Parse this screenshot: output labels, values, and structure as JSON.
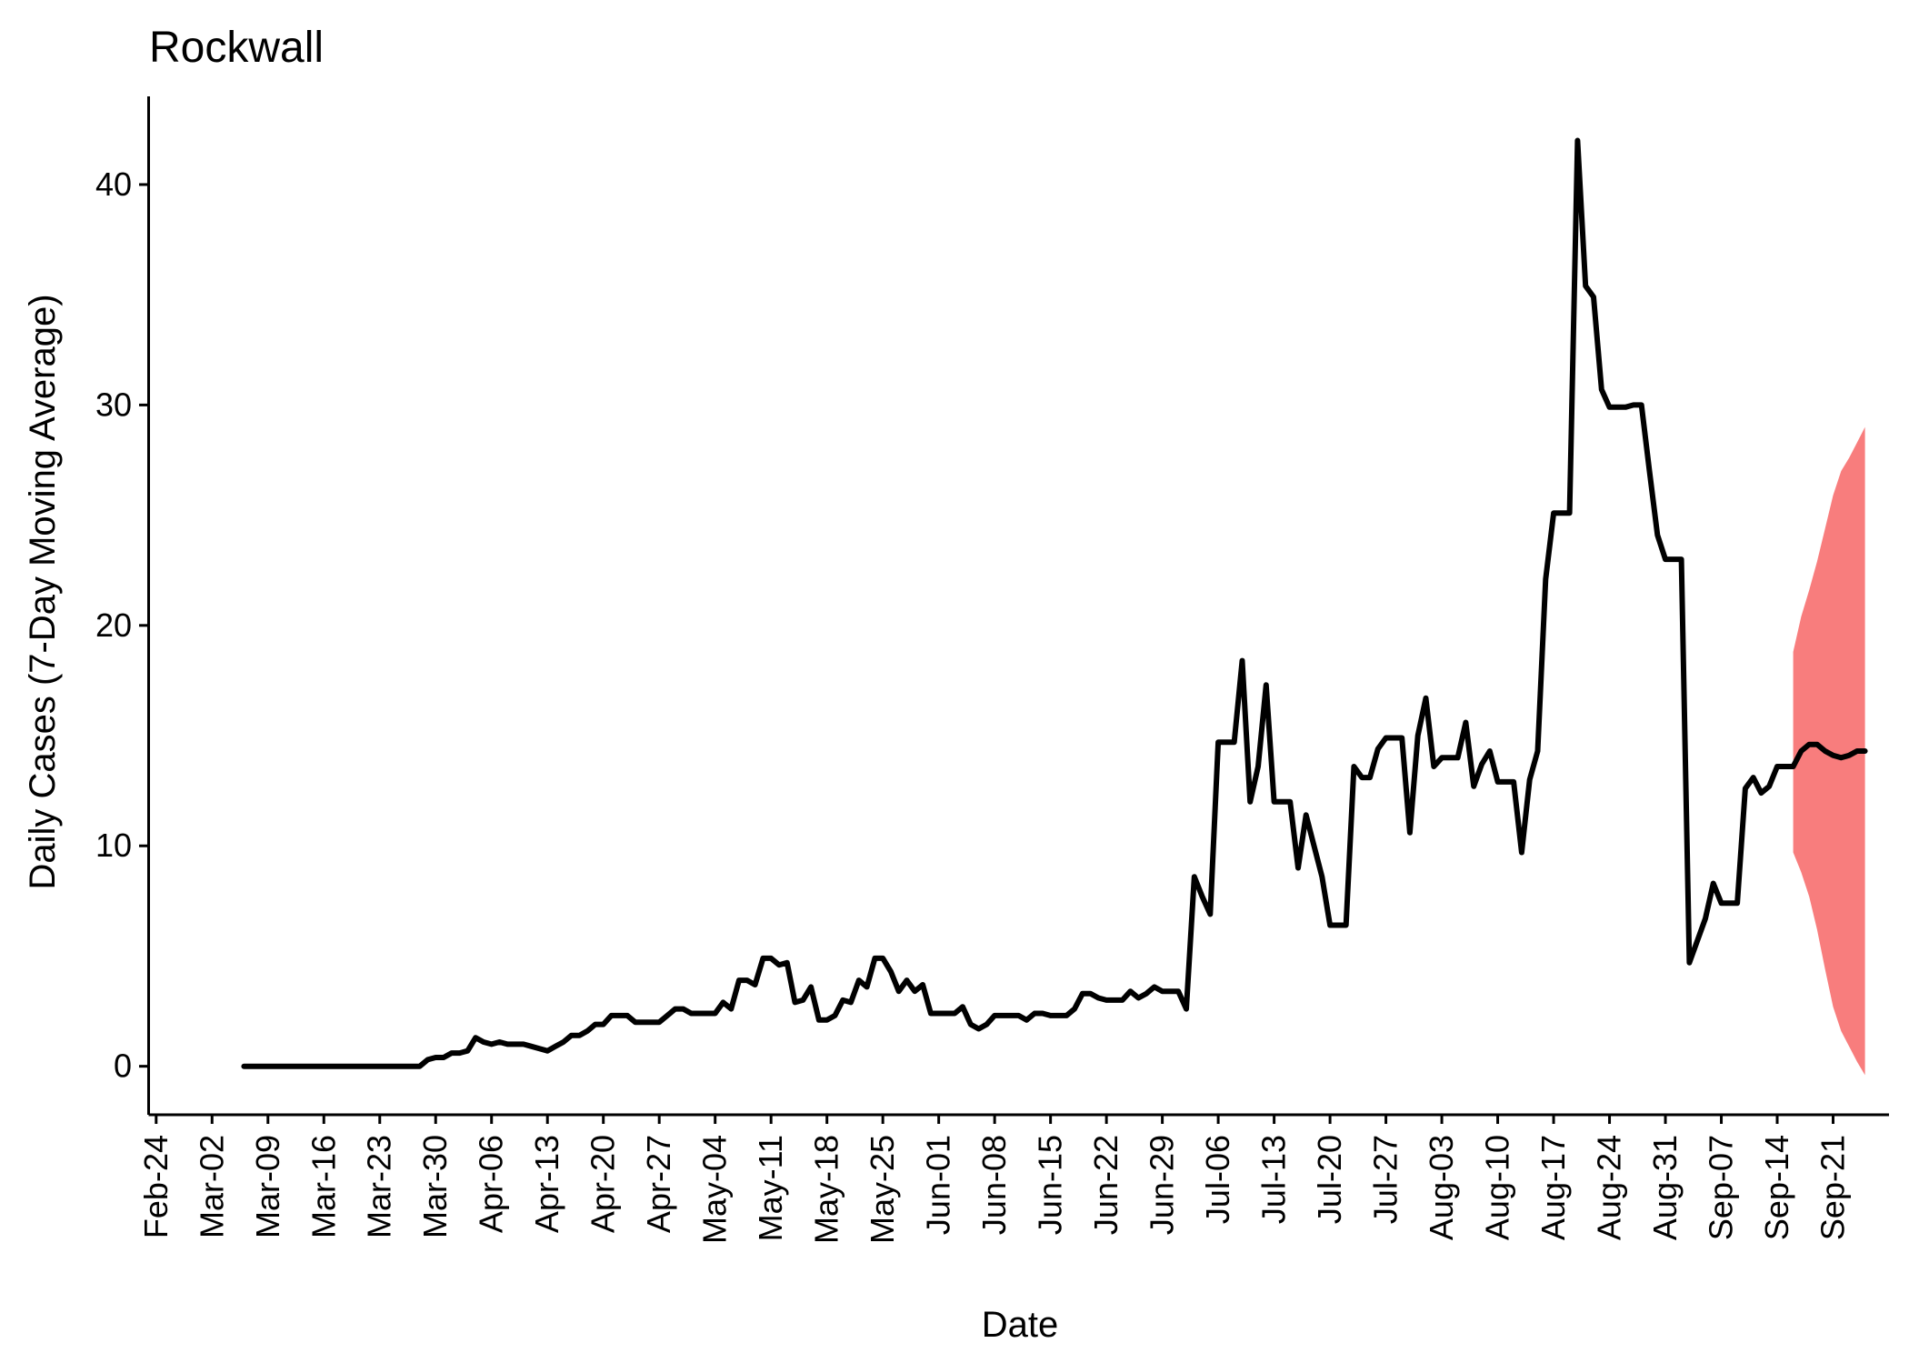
{
  "chart_data": {
    "type": "line",
    "title": "Rockwall",
    "xlabel": "Date",
    "ylabel": "Daily Cases (7-Day Moving Average)",
    "x_ticks": [
      "Feb-24",
      "Mar-02",
      "Mar-09",
      "Mar-16",
      "Mar-23",
      "Mar-30",
      "Apr-06",
      "Apr-13",
      "Apr-20",
      "Apr-27",
      "May-04",
      "May-11",
      "May-18",
      "May-25",
      "Jun-01",
      "Jun-08",
      "Jun-15",
      "Jun-22",
      "Jun-29",
      "Jul-06",
      "Jul-13",
      "Jul-20",
      "Jul-27",
      "Aug-03",
      "Aug-10",
      "Aug-17",
      "Aug-24",
      "Aug-31",
      "Sep-07",
      "Sep-14",
      "Sep-21"
    ],
    "y_ticks": [
      0,
      10,
      20,
      30,
      40
    ],
    "ylim": [
      -2.2,
      44
    ],
    "xlim": [
      "2020-02-23",
      "2020-09-28"
    ],
    "grid": false,
    "colors": {
      "line": "#000000",
      "band": "#f87d7d"
    },
    "series": [
      {
        "values": [
          [
            "2020-03-06",
            0
          ],
          [
            "2020-03-13",
            0
          ],
          [
            "2020-03-20",
            0
          ],
          [
            "2020-03-27",
            0
          ],
          [
            "2020-03-28",
            0
          ],
          [
            "2020-03-29",
            0.3
          ],
          [
            "2020-03-30",
            0.4
          ],
          [
            "2020-03-31",
            0.4
          ],
          [
            "2020-04-01",
            0.6
          ],
          [
            "2020-04-02",
            0.6
          ],
          [
            "2020-04-03",
            0.7
          ],
          [
            "2020-04-04",
            1.3
          ],
          [
            "2020-04-05",
            1.1
          ],
          [
            "2020-04-06",
            1.0
          ],
          [
            "2020-04-07",
            1.1
          ],
          [
            "2020-04-08",
            1.0
          ],
          [
            "2020-04-09",
            1.0
          ],
          [
            "2020-04-10",
            1.0
          ],
          [
            "2020-04-11",
            0.9
          ],
          [
            "2020-04-12",
            0.8
          ],
          [
            "2020-04-13",
            0.7
          ],
          [
            "2020-04-14",
            0.9
          ],
          [
            "2020-04-15",
            1.1
          ],
          [
            "2020-04-16",
            1.4
          ],
          [
            "2020-04-17",
            1.4
          ],
          [
            "2020-04-18",
            1.6
          ],
          [
            "2020-04-19",
            1.9
          ],
          [
            "2020-04-20",
            1.9
          ],
          [
            "2020-04-21",
            2.3
          ],
          [
            "2020-04-22",
            2.3
          ],
          [
            "2020-04-23",
            2.3
          ],
          [
            "2020-04-24",
            2.0
          ],
          [
            "2020-04-25",
            2.0
          ],
          [
            "2020-04-26",
            2.0
          ],
          [
            "2020-04-27",
            2.0
          ],
          [
            "2020-04-28",
            2.3
          ],
          [
            "2020-04-29",
            2.6
          ],
          [
            "2020-04-30",
            2.6
          ],
          [
            "2020-05-01",
            2.4
          ],
          [
            "2020-05-02",
            2.4
          ],
          [
            "2020-05-03",
            2.4
          ],
          [
            "2020-05-04",
            2.4
          ],
          [
            "2020-05-05",
            2.9
          ],
          [
            "2020-05-06",
            2.6
          ],
          [
            "2020-05-07",
            3.9
          ],
          [
            "2020-05-08",
            3.9
          ],
          [
            "2020-05-09",
            3.7
          ],
          [
            "2020-05-10",
            4.9
          ],
          [
            "2020-05-11",
            4.9
          ],
          [
            "2020-05-12",
            4.6
          ],
          [
            "2020-05-13",
            4.7
          ],
          [
            "2020-05-14",
            2.9
          ],
          [
            "2020-05-15",
            3.0
          ],
          [
            "2020-05-16",
            3.6
          ],
          [
            "2020-05-17",
            2.1
          ],
          [
            "2020-05-18",
            2.1
          ],
          [
            "2020-05-19",
            2.3
          ],
          [
            "2020-05-20",
            3.0
          ],
          [
            "2020-05-21",
            2.9
          ],
          [
            "2020-05-22",
            3.9
          ],
          [
            "2020-05-23",
            3.6
          ],
          [
            "2020-05-24",
            4.9
          ],
          [
            "2020-05-25",
            4.9
          ],
          [
            "2020-05-26",
            4.3
          ],
          [
            "2020-05-27",
            3.4
          ],
          [
            "2020-05-28",
            3.9
          ],
          [
            "2020-05-29",
            3.4
          ],
          [
            "2020-05-30",
            3.7
          ],
          [
            "2020-05-31",
            2.4
          ],
          [
            "2020-06-01",
            2.4
          ],
          [
            "2020-06-02",
            2.4
          ],
          [
            "2020-06-03",
            2.4
          ],
          [
            "2020-06-04",
            2.7
          ],
          [
            "2020-06-05",
            1.9
          ],
          [
            "2020-06-06",
            1.7
          ],
          [
            "2020-06-07",
            1.9
          ],
          [
            "2020-06-08",
            2.3
          ],
          [
            "2020-06-09",
            2.3
          ],
          [
            "2020-06-10",
            2.3
          ],
          [
            "2020-06-11",
            2.3
          ],
          [
            "2020-06-12",
            2.1
          ],
          [
            "2020-06-13",
            2.4
          ],
          [
            "2020-06-14",
            2.4
          ],
          [
            "2020-06-15",
            2.3
          ],
          [
            "2020-06-16",
            2.3
          ],
          [
            "2020-06-17",
            2.3
          ],
          [
            "2020-06-18",
            2.6
          ],
          [
            "2020-06-19",
            3.3
          ],
          [
            "2020-06-20",
            3.3
          ],
          [
            "2020-06-21",
            3.1
          ],
          [
            "2020-06-22",
            3.0
          ],
          [
            "2020-06-23",
            3.0
          ],
          [
            "2020-06-24",
            3.0
          ],
          [
            "2020-06-25",
            3.4
          ],
          [
            "2020-06-26",
            3.1
          ],
          [
            "2020-06-27",
            3.3
          ],
          [
            "2020-06-28",
            3.6
          ],
          [
            "2020-06-29",
            3.4
          ],
          [
            "2020-06-30",
            3.4
          ],
          [
            "2020-07-01",
            3.4
          ],
          [
            "2020-07-02",
            2.6
          ],
          [
            "2020-07-03",
            8.6
          ],
          [
            "2020-07-04",
            7.7
          ],
          [
            "2020-07-05",
            6.9
          ],
          [
            "2020-07-06",
            14.7
          ],
          [
            "2020-07-07",
            14.7
          ],
          [
            "2020-07-08",
            14.7
          ],
          [
            "2020-07-09",
            18.4
          ],
          [
            "2020-07-10",
            12.0
          ],
          [
            "2020-07-11",
            13.6
          ],
          [
            "2020-07-12",
            17.3
          ],
          [
            "2020-07-13",
            12.0
          ],
          [
            "2020-07-14",
            12.0
          ],
          [
            "2020-07-15",
            12.0
          ],
          [
            "2020-07-16",
            9.0
          ],
          [
            "2020-07-17",
            11.4
          ],
          [
            "2020-07-18",
            10.0
          ],
          [
            "2020-07-19",
            8.6
          ],
          [
            "2020-07-20",
            6.4
          ],
          [
            "2020-07-21",
            6.4
          ],
          [
            "2020-07-22",
            6.4
          ],
          [
            "2020-07-23",
            13.6
          ],
          [
            "2020-07-24",
            13.1
          ],
          [
            "2020-07-25",
            13.1
          ],
          [
            "2020-07-26",
            14.4
          ],
          [
            "2020-07-27",
            14.9
          ],
          [
            "2020-07-28",
            14.9
          ],
          [
            "2020-07-29",
            14.9
          ],
          [
            "2020-07-30",
            10.6
          ],
          [
            "2020-07-31",
            15.0
          ],
          [
            "2020-08-01",
            16.7
          ],
          [
            "2020-08-02",
            13.6
          ],
          [
            "2020-08-03",
            14.0
          ],
          [
            "2020-08-04",
            14.0
          ],
          [
            "2020-08-05",
            14.0
          ],
          [
            "2020-08-06",
            15.6
          ],
          [
            "2020-08-07",
            12.7
          ],
          [
            "2020-08-08",
            13.7
          ],
          [
            "2020-08-09",
            14.3
          ],
          [
            "2020-08-10",
            12.9
          ],
          [
            "2020-08-11",
            12.9
          ],
          [
            "2020-08-12",
            12.9
          ],
          [
            "2020-08-13",
            9.7
          ],
          [
            "2020-08-14",
            13.0
          ],
          [
            "2020-08-15",
            14.3
          ],
          [
            "2020-08-16",
            22.1
          ],
          [
            "2020-08-17",
            25.1
          ],
          [
            "2020-08-18",
            25.1
          ],
          [
            "2020-08-19",
            25.1
          ],
          [
            "2020-08-20",
            42.0
          ],
          [
            "2020-08-21",
            35.4
          ],
          [
            "2020-08-22",
            34.9
          ],
          [
            "2020-08-23",
            30.7
          ],
          [
            "2020-08-24",
            29.9
          ],
          [
            "2020-08-25",
            29.9
          ],
          [
            "2020-08-26",
            29.9
          ],
          [
            "2020-08-27",
            30.0
          ],
          [
            "2020-08-28",
            30.0
          ],
          [
            "2020-08-29",
            27.0
          ],
          [
            "2020-08-30",
            24.1
          ],
          [
            "2020-08-31",
            23.0
          ],
          [
            "2020-09-01",
            23.0
          ],
          [
            "2020-09-02",
            23.0
          ],
          [
            "2020-09-03",
            4.7
          ],
          [
            "2020-09-04",
            5.7
          ],
          [
            "2020-09-05",
            6.7
          ],
          [
            "2020-09-06",
            8.3
          ],
          [
            "2020-09-07",
            7.4
          ],
          [
            "2020-09-08",
            7.4
          ],
          [
            "2020-09-09",
            7.4
          ],
          [
            "2020-09-10",
            12.6
          ],
          [
            "2020-09-11",
            13.1
          ],
          [
            "2020-09-12",
            12.4
          ],
          [
            "2020-09-13",
            12.7
          ],
          [
            "2020-09-14",
            13.6
          ],
          [
            "2020-09-15",
            13.6
          ],
          [
            "2020-09-16",
            13.6
          ],
          [
            "2020-09-17",
            14.3
          ],
          [
            "2020-09-18",
            14.6
          ],
          [
            "2020-09-19",
            14.6
          ],
          [
            "2020-09-20",
            14.3
          ],
          [
            "2020-09-21",
            14.1
          ],
          [
            "2020-09-22",
            14.0
          ],
          [
            "2020-09-23",
            14.1
          ],
          [
            "2020-09-24",
            14.3
          ],
          [
            "2020-09-25",
            14.3
          ]
        ]
      }
    ],
    "band": {
      "x": [
        "2020-09-16",
        "2020-09-17",
        "2020-09-18",
        "2020-09-19",
        "2020-09-20",
        "2020-09-21",
        "2020-09-22",
        "2020-09-23",
        "2020-09-24",
        "2020-09-25"
      ],
      "upper": [
        18.8,
        20.4,
        21.6,
        22.9,
        24.4,
        25.9,
        27.0,
        27.6,
        28.3,
        29.0
      ],
      "lower": [
        9.7,
        8.8,
        7.7,
        6.2,
        4.4,
        2.7,
        1.6,
        0.9,
        0.2,
        -0.4
      ]
    }
  }
}
